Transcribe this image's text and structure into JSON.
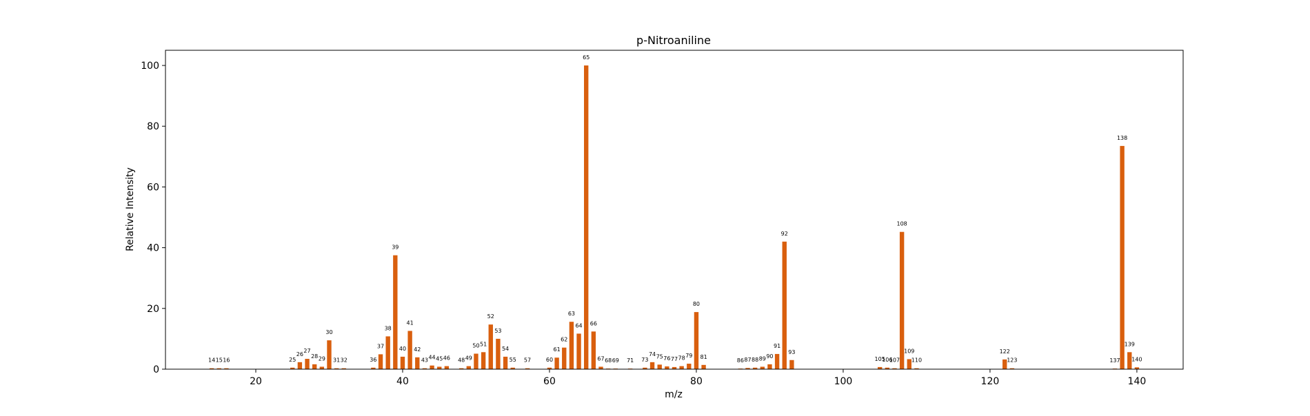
{
  "chart_data": {
    "type": "bar",
    "title": "p-Nitroaniline",
    "xlabel": "m/z",
    "ylabel": "Relative Intensity",
    "xlim": [
      7.7,
      146.3
    ],
    "ylim": [
      0,
      105
    ],
    "x_ticks": [
      20,
      40,
      60,
      80,
      100,
      120,
      140
    ],
    "y_ticks": [
      0,
      20,
      40,
      60,
      80,
      100
    ],
    "grid": false,
    "bar_color": "#d95f0e",
    "points": [
      {
        "mz": 14,
        "intensity": 0.3
      },
      {
        "mz": 15,
        "intensity": 0.3
      },
      {
        "mz": 16,
        "intensity": 0.3
      },
      {
        "mz": 25,
        "intensity": 0.5
      },
      {
        "mz": 26,
        "intensity": 2.3
      },
      {
        "mz": 27,
        "intensity": 3.4
      },
      {
        "mz": 28,
        "intensity": 1.6
      },
      {
        "mz": 29,
        "intensity": 0.8
      },
      {
        "mz": 30,
        "intensity": 9.5
      },
      {
        "mz": 31,
        "intensity": 0.3
      },
      {
        "mz": 32,
        "intensity": 0.3
      },
      {
        "mz": 36,
        "intensity": 0.5
      },
      {
        "mz": 37,
        "intensity": 4.9
      },
      {
        "mz": 38,
        "intensity": 10.8
      },
      {
        "mz": 39,
        "intensity": 37.5
      },
      {
        "mz": 40,
        "intensity": 4.1
      },
      {
        "mz": 41,
        "intensity": 12.6
      },
      {
        "mz": 42,
        "intensity": 3.9
      },
      {
        "mz": 43,
        "intensity": 0.3
      },
      {
        "mz": 44,
        "intensity": 1.2
      },
      {
        "mz": 45,
        "intensity": 0.8
      },
      {
        "mz": 46,
        "intensity": 1.0
      },
      {
        "mz": 48,
        "intensity": 0.3
      },
      {
        "mz": 49,
        "intensity": 1.0
      },
      {
        "mz": 50,
        "intensity": 5.1
      },
      {
        "mz": 51,
        "intensity": 5.6
      },
      {
        "mz": 52,
        "intensity": 14.7
      },
      {
        "mz": 53,
        "intensity": 10.0
      },
      {
        "mz": 54,
        "intensity": 4.1
      },
      {
        "mz": 55,
        "intensity": 0.5
      },
      {
        "mz": 57,
        "intensity": 0.3
      },
      {
        "mz": 60,
        "intensity": 0.5
      },
      {
        "mz": 61,
        "intensity": 3.8
      },
      {
        "mz": 62,
        "intensity": 7.1
      },
      {
        "mz": 63,
        "intensity": 15.6
      },
      {
        "mz": 64,
        "intensity": 11.7
      },
      {
        "mz": 65,
        "intensity": 100.0
      },
      {
        "mz": 66,
        "intensity": 12.4
      },
      {
        "mz": 67,
        "intensity": 0.8
      },
      {
        "mz": 68,
        "intensity": 0.2
      },
      {
        "mz": 69,
        "intensity": 0.2
      },
      {
        "mz": 71,
        "intensity": 0.2
      },
      {
        "mz": 73,
        "intensity": 0.5
      },
      {
        "mz": 74,
        "intensity": 2.3
      },
      {
        "mz": 75,
        "intensity": 1.5
      },
      {
        "mz": 76,
        "intensity": 0.9
      },
      {
        "mz": 77,
        "intensity": 0.7
      },
      {
        "mz": 78,
        "intensity": 1.0
      },
      {
        "mz": 79,
        "intensity": 1.8
      },
      {
        "mz": 80,
        "intensity": 18.8
      },
      {
        "mz": 81,
        "intensity": 1.4
      },
      {
        "mz": 86,
        "intensity": 0.2
      },
      {
        "mz": 87,
        "intensity": 0.4
      },
      {
        "mz": 88,
        "intensity": 0.5
      },
      {
        "mz": 89,
        "intensity": 0.8
      },
      {
        "mz": 90,
        "intensity": 1.6
      },
      {
        "mz": 91,
        "intensity": 5.0
      },
      {
        "mz": 92,
        "intensity": 42.0
      },
      {
        "mz": 93,
        "intensity": 3.0
      },
      {
        "mz": 105,
        "intensity": 0.7
      },
      {
        "mz": 106,
        "intensity": 0.5
      },
      {
        "mz": 107,
        "intensity": 0.3
      },
      {
        "mz": 108,
        "intensity": 45.2
      },
      {
        "mz": 109,
        "intensity": 3.3
      },
      {
        "mz": 110,
        "intensity": 0.3
      },
      {
        "mz": 122,
        "intensity": 3.2
      },
      {
        "mz": 123,
        "intensity": 0.3
      },
      {
        "mz": 137,
        "intensity": 0.2
      },
      {
        "mz": 138,
        "intensity": 73.5
      },
      {
        "mz": 139,
        "intensity": 5.6
      },
      {
        "mz": 140,
        "intensity": 0.6
      }
    ]
  }
}
